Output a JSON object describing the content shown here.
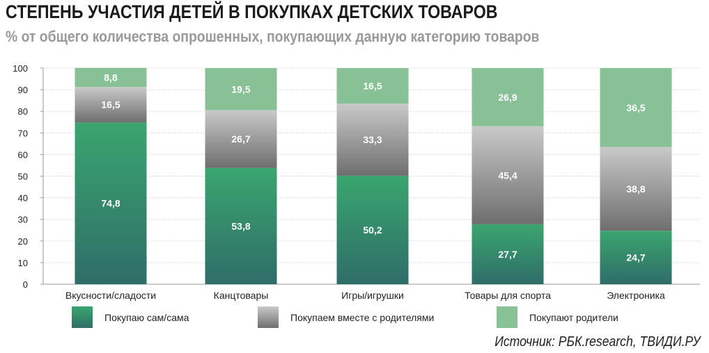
{
  "chart_data": {
    "type": "bar",
    "stacked": true,
    "title": "СТЕПЕНЬ УЧАСТИЯ ДЕТЕЙ В ПОКУПКАХ ДЕТСКИХ ТОВАРОВ",
    "subtitle": "% от общего количества опрошенных, покупающих данную категорию товаров",
    "categories": [
      "Вкусности/сладости",
      "Канцтовары",
      "Игры/игрушки",
      "Товары для спорта",
      "Электроника"
    ],
    "series": [
      {
        "name": "Покупаю сам/сама",
        "values": [
          74.8,
          53.8,
          50.2,
          27.7,
          24.7
        ],
        "color_top": "#3aa56f",
        "color_bottom": "#2f6d68"
      },
      {
        "name": "Покупаем вместе с родителями",
        "values": [
          16.5,
          26.7,
          33.3,
          45.4,
          38.8
        ],
        "color_top": "#c9c9c9",
        "color_bottom": "#6e6e6e"
      },
      {
        "name": "Покупают родители",
        "values": [
          8.8,
          19.5,
          16.5,
          26.9,
          36.5
        ],
        "color_top": "#88c196",
        "color_bottom": "#88c196"
      }
    ],
    "yticks": [
      "0",
      "10",
      "20",
      "30",
      "40",
      "50",
      "60",
      "70",
      "80",
      "90",
      "100"
    ],
    "ylim": [
      0,
      100
    ],
    "grid": true,
    "legend": "bottom",
    "source": "Источник: РБК.research, ТВИДИ.РУ"
  }
}
